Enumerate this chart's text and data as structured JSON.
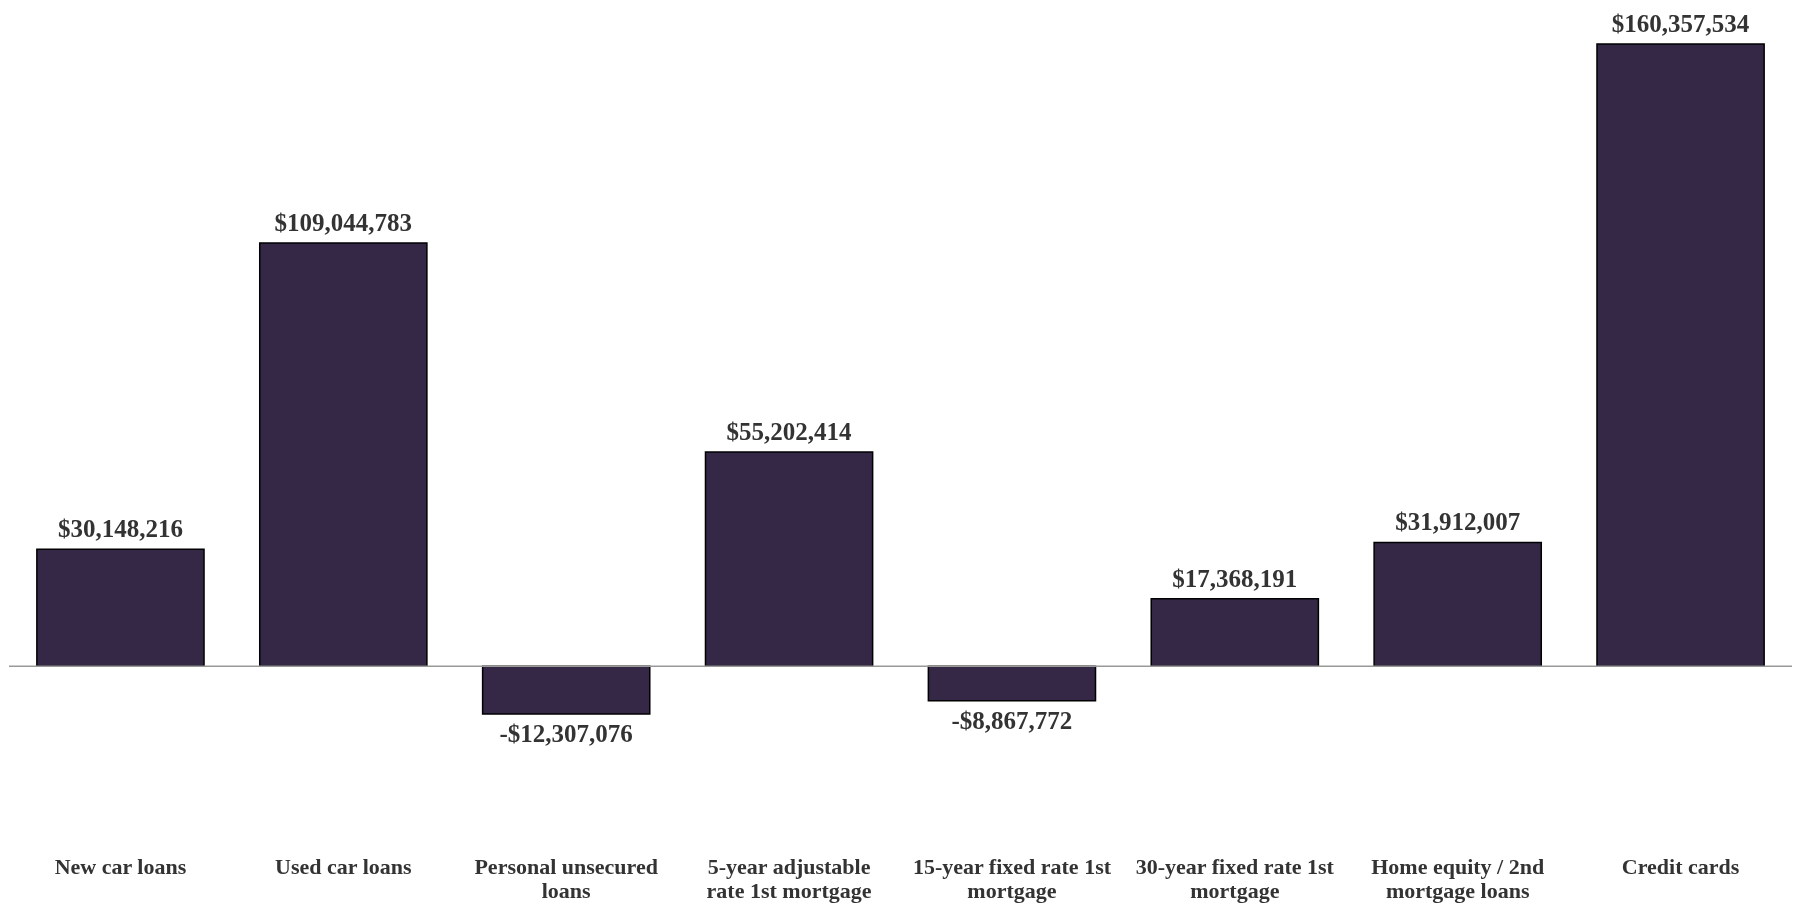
{
  "chart_data": {
    "type": "bar",
    "categories": [
      "New car loans",
      "Used car loans",
      "Personal unsecured loans",
      "5-year adjustable rate 1st mortgage",
      "15-year fixed rate 1st mortgage",
      "30-year fixed rate 1st mortgage",
      "Home equity / 2nd mortgage loans",
      "Credit cards"
    ],
    "values": [
      30148216,
      109044783,
      -12307076,
      55202414,
      -8867772,
      17368191,
      31912007,
      160357534
    ],
    "value_labels": [
      "$30,148,216",
      "$109,044,783",
      "-$12,307,076",
      "$55,202,414",
      "-$8,867,772",
      "$17,368,191",
      "$31,912,007",
      "$160,357,534"
    ],
    "color": "#352746"
  }
}
